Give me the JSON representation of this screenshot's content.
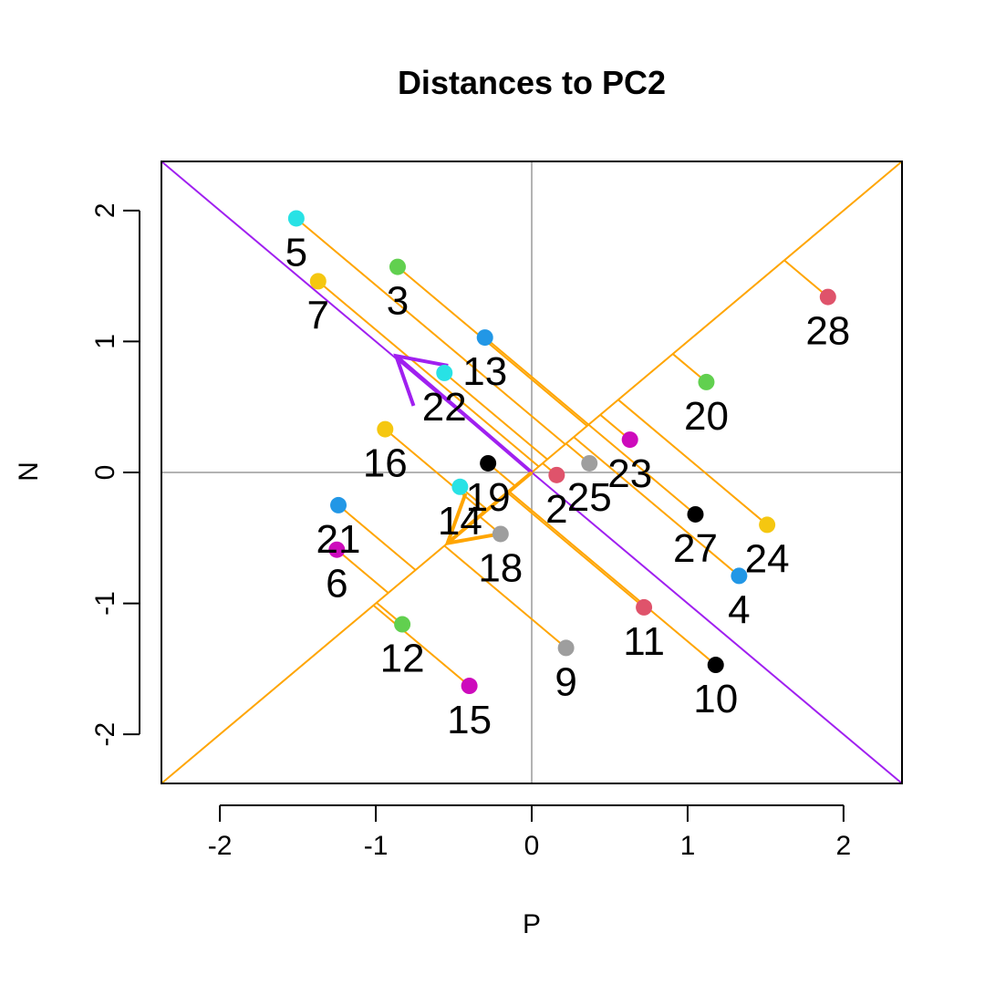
{
  "chart_data": {
    "type": "scatter",
    "title": "Distances to PC2",
    "xlabel": "P",
    "ylabel": "N",
    "xlim": [
      -2.375,
      2.375
    ],
    "ylim": [
      -2.375,
      2.375
    ],
    "x_ticks": [
      -2,
      -1,
      0,
      1,
      2
    ],
    "x_tick_labels": [
      "-2",
      "-1",
      "0",
      "1",
      "2"
    ],
    "y_ticks": [
      -2,
      -1,
      0,
      1,
      2
    ],
    "y_tick_labels": [
      "-2",
      "-1",
      "0",
      "1",
      "2"
    ],
    "grid": false,
    "reference_lines": {
      "horizontal": 0,
      "vertical": 0,
      "color": "#b3b3b3"
    },
    "pc_lines": [
      {
        "slope": -1,
        "color": "#a020f0"
      },
      {
        "slope": 1,
        "color": "#ffa500"
      }
    ],
    "projection_color": "#ffa500",
    "arrows": [
      {
        "from": [
          0,
          0
        ],
        "to": [
          -0.87,
          0.89
        ],
        "color": "#a020f0"
      },
      {
        "from": [
          0,
          0
        ],
        "to": [
          -0.54,
          -0.54
        ],
        "color": "#ffa500"
      }
    ],
    "points": [
      {
        "label": "2",
        "x": 0.16,
        "y": -0.02,
        "color": "#df536b"
      },
      {
        "label": "3",
        "x": -0.86,
        "y": 1.57,
        "color": "#61d04f"
      },
      {
        "label": "4",
        "x": 1.33,
        "y": -0.79,
        "color": "#2297e6"
      },
      {
        "label": "5",
        "x": -1.51,
        "y": 1.94,
        "color": "#28e2e5"
      },
      {
        "label": "6",
        "x": -1.25,
        "y": -0.59,
        "color": "#cd0bbc"
      },
      {
        "label": "7",
        "x": -1.37,
        "y": 1.46,
        "color": "#f5c710"
      },
      {
        "label": "9",
        "x": 0.22,
        "y": -1.34,
        "color": "#9e9e9e"
      },
      {
        "label": "10",
        "x": 1.18,
        "y": -1.47,
        "color": "#000000"
      },
      {
        "label": "11",
        "x": 0.72,
        "y": -1.03,
        "color": "#df536b"
      },
      {
        "label": "12",
        "x": -0.83,
        "y": -1.16,
        "color": "#61d04f"
      },
      {
        "label": "13",
        "x": -0.3,
        "y": 1.03,
        "color": "#2297e6"
      },
      {
        "label": "14",
        "x": -0.46,
        "y": -0.11,
        "color": "#28e2e5"
      },
      {
        "label": "15",
        "x": -0.4,
        "y": -1.63,
        "color": "#cd0bbc"
      },
      {
        "label": "16",
        "x": -0.94,
        "y": 0.33,
        "color": "#f5c710"
      },
      {
        "label": "18",
        "x": -0.2,
        "y": -0.47,
        "color": "#9e9e9e"
      },
      {
        "label": "19",
        "x": -0.28,
        "y": 0.07,
        "color": "#000000"
      },
      {
        "label": "20",
        "x": 1.12,
        "y": 0.69,
        "color": "#61d04f"
      },
      {
        "label": "21",
        "x": -1.24,
        "y": -0.25,
        "color": "#2297e6"
      },
      {
        "label": "22",
        "x": -0.56,
        "y": 0.76,
        "color": "#28e2e5"
      },
      {
        "label": "23",
        "x": 0.63,
        "y": 0.25,
        "color": "#cd0bbc"
      },
      {
        "label": "24",
        "x": 1.51,
        "y": -0.4,
        "color": "#f5c710"
      },
      {
        "label": "25",
        "x": 0.37,
        "y": 0.07,
        "color": "#9e9e9e"
      },
      {
        "label": "27",
        "x": 1.05,
        "y": -0.32,
        "color": "#000000"
      },
      {
        "label": "28",
        "x": 1.9,
        "y": 1.34,
        "color": "#df536b"
      }
    ]
  }
}
